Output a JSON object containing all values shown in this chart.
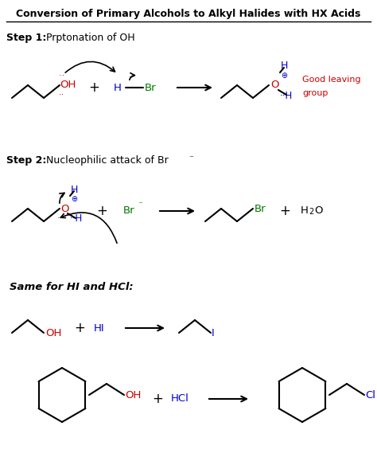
{
  "title": "Conversion of Primary Alcohols to Alkyl Halides with HX Acids",
  "bg_color": "#ffffff",
  "figsize": [
    4.74,
    5.84
  ],
  "dpi": 100,
  "colors": {
    "black": "#000000",
    "red": "#cc0000",
    "blue": "#0000cc",
    "green": "#007700",
    "dark": "#111111"
  },
  "step1_label": "Step 1:",
  "step1_text": "Prptonation of OH",
  "step2_label": "Step 2:",
  "step2_text": "Nucleophilic attack of Br",
  "same_for": "Same for HI and HCl:",
  "good_leaving1": "Good leaving",
  "good_leaving2": "group"
}
